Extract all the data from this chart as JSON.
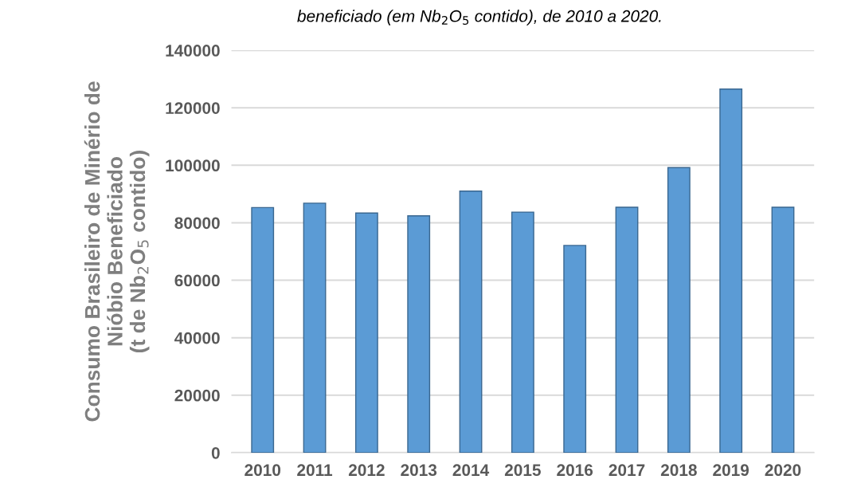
{
  "chart_data": {
    "type": "bar",
    "title": "beneficiado (em Nb$_{2}$O$_{5}$ contido), de 2010 a 2020.",
    "ylabel": "Consumo Brasileiro de Minério de\nNióbio Beneficiado\n(t de Nb$_{2}$O$_{5}$ contido)",
    "categories": [
      "2010",
      "2011",
      "2012",
      "2013",
      "2014",
      "2015",
      "2016",
      "2017",
      "2018",
      "2019",
      "2020"
    ],
    "values": [
      85300,
      86800,
      83400,
      82400,
      91000,
      83700,
      72100,
      85400,
      99200,
      126500,
      85400
    ],
    "color": "#5b9bd5",
    "ylim": [
      0,
      140000
    ],
    "yticks": [
      0,
      20000,
      40000,
      60000,
      80000,
      100000,
      120000,
      140000
    ],
    "grid": "y"
  }
}
